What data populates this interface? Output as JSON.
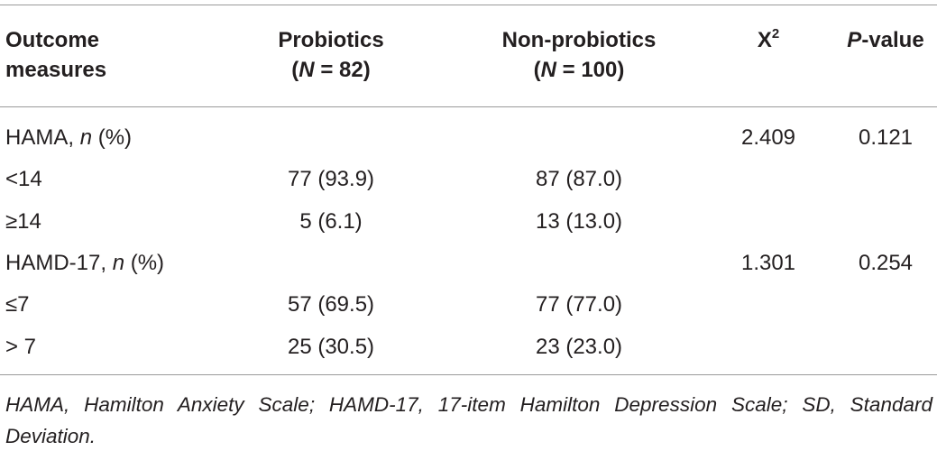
{
  "table": {
    "header": {
      "outcome": "Outcome measures",
      "probiotics": [
        "Probiotics",
        "(",
        "N",
        " = 82)"
      ],
      "non_probiotics": [
        "Non-probiotics",
        "(",
        "N",
        " = 100)"
      ],
      "chi2": [
        "X",
        "2"
      ],
      "p_value": [
        "P",
        "-value"
      ]
    },
    "rows": [
      {
        "label": [
          "HAMA, ",
          "n",
          " (%)"
        ],
        "chi2": "2.409",
        "p_value": "0.121"
      },
      {
        "label": "<14",
        "probiotics": "77 (93.9)",
        "non_probiotics": "87 (87.0)"
      },
      {
        "label": "≥14",
        "probiotics": "5 (6.1)",
        "non_probiotics": "13 (13.0)"
      },
      {
        "label": [
          "HAMD-17, ",
          "n",
          " (%)"
        ],
        "chi2": "1.301",
        "p_value": "0.254"
      },
      {
        "label": "≤7",
        "probiotics": "57 (69.5)",
        "non_probiotics": "77 (77.0)"
      },
      {
        "label": "> 7",
        "probiotics": "25 (30.5)",
        "non_probiotics": "23 (23.0)"
      }
    ],
    "footnote": "HAMA, Hamilton Anxiety Scale; HAMD-17, 17-item Hamilton Depression Scale; SD, Standard Deviation."
  }
}
